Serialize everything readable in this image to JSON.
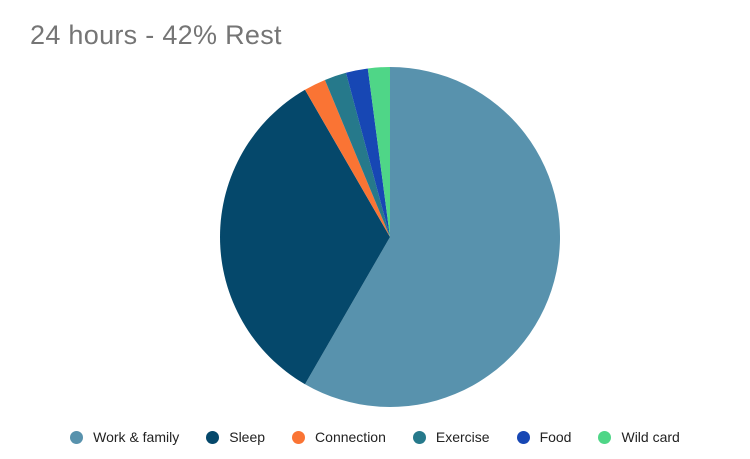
{
  "chart_data": {
    "type": "pie",
    "title": "24 hours - 42% Rest",
    "title_color": "#757575",
    "unit": "hours",
    "total": 24,
    "categories": [
      "Work & family",
      "Sleep",
      "Connection",
      "Exercise",
      "Food",
      "Wild card"
    ],
    "values": [
      14,
      8,
      0.5,
      0.5,
      0.5,
      0.5
    ],
    "percentages": [
      58.3,
      33.3,
      2.1,
      2.1,
      2.1,
      2.1
    ],
    "colors": [
      "#5892ad",
      "#05486b",
      "#fa7434",
      "#26798b",
      "#1747b4",
      "#4fd687"
    ],
    "start_angle_deg": 0,
    "direction": "clockwise",
    "legend_position": "bottom",
    "legend_text_color": "#222222",
    "background": "#ffffff"
  }
}
